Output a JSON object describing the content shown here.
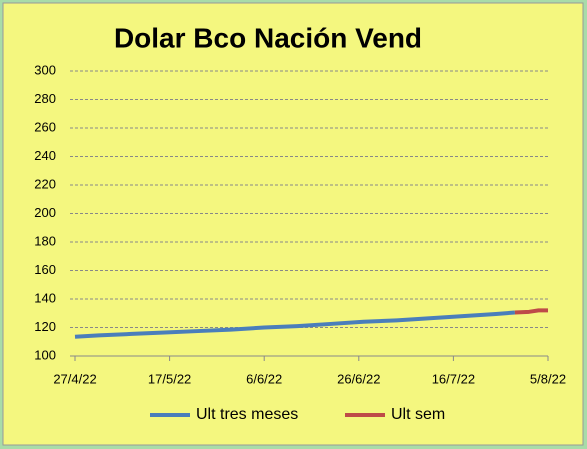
{
  "chart_data": {
    "type": "line",
    "title": "Dolar Bco Nación Vend",
    "xlim": [
      "27/4/22",
      "5/8/22"
    ],
    "xticks": [
      "27/4/22",
      "17/5/22",
      "6/6/22",
      "26/6/22",
      "16/7/22",
      "5/8/22"
    ],
    "ylim": [
      100,
      300
    ],
    "yticks": [
      100,
      120,
      140,
      160,
      180,
      200,
      220,
      240,
      260,
      280,
      300
    ],
    "grid": true,
    "legend": "bottom",
    "series": [
      {
        "name": "Ult tres meses",
        "color": "#4a7ebb",
        "x": [
          "27/4/22",
          "2/5/22",
          "9/5/22",
          "16/5/22",
          "23/5/22",
          "30/5/22",
          "6/6/22",
          "13/6/22",
          "20/6/22",
          "27/6/22",
          "4/7/22",
          "11/7/22",
          "18/7/22",
          "25/7/22",
          "29/7/22"
        ],
        "values": [
          113.5,
          114.5,
          115.5,
          116.5,
          117.5,
          118.5,
          120,
          121,
          122.5,
          124,
          125,
          126.5,
          128,
          129.5,
          130.5
        ]
      },
      {
        "name": "Ult sem",
        "color": "#be4b48",
        "x": [
          "29/7/22",
          "1/8/22",
          "3/8/22",
          "5/8/22"
        ],
        "values": [
          130.5,
          131,
          132,
          132
        ]
      }
    ]
  }
}
